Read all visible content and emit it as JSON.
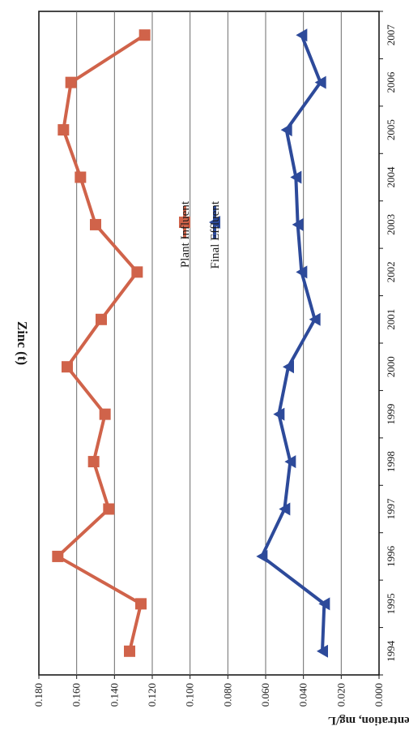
{
  "chart_data": {
    "type": "line",
    "title": "Zinc (t)",
    "xlabel": "",
    "ylabel": "Concentration, mg/L",
    "orientation": "rotated-90-clockwise",
    "categories": [
      "1994",
      "1995",
      "1996",
      "1997",
      "1998",
      "1999",
      "2000",
      "2001",
      "2002",
      "2003",
      "2004",
      "2005",
      "2006",
      "2007"
    ],
    "ylim": [
      0,
      0.18
    ],
    "yticks": [
      "0.000",
      "0.020",
      "0.040",
      "0.060",
      "0.080",
      "0.100",
      "0.120",
      "0.140",
      "0.160",
      "0.180"
    ],
    "grid": true,
    "legend_position": "center-right",
    "series": [
      {
        "name": "Plant Influent",
        "color": "#d0634a",
        "marker": "square",
        "values": [
          0.132,
          0.126,
          0.17,
          0.143,
          0.151,
          0.145,
          0.165,
          0.147,
          0.128,
          0.15,
          0.158,
          0.167,
          0.163,
          0.124
        ]
      },
      {
        "name": "Final Effluent",
        "color": "#2d4a9a",
        "marker": "triangle",
        "values": [
          0.03,
          0.029,
          0.062,
          0.05,
          0.047,
          0.053,
          0.048,
          0.034,
          0.041,
          0.043,
          0.044,
          0.049,
          0.031,
          0.041
        ]
      }
    ]
  }
}
